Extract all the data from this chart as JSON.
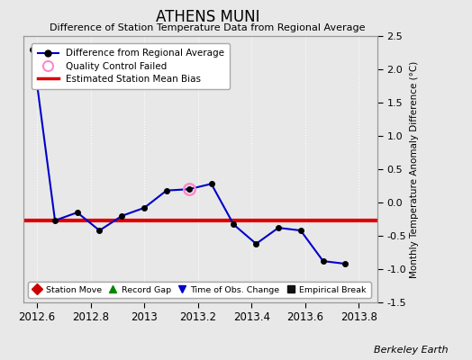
{
  "title": "ATHENS MUNI",
  "subtitle": "Difference of Station Temperature Data from Regional Average",
  "ylabel_right": "Monthly Temperature Anomaly Difference (°C)",
  "xlim": [
    2012.55,
    2013.87
  ],
  "ylim": [
    -1.5,
    2.5
  ],
  "yticks": [
    -1.5,
    -1.0,
    -0.5,
    0.0,
    0.5,
    1.0,
    1.5,
    2.0,
    2.5
  ],
  "xticks": [
    2012.6,
    2012.8,
    2013.0,
    2013.2,
    2013.4,
    2013.6,
    2013.8
  ],
  "xtick_labels": [
    "2012.6",
    "2012.8",
    "2013",
    "2013.2",
    "2013.4",
    "2013.6",
    "2013.8"
  ],
  "line_x": [
    2012.583,
    2012.667,
    2012.75,
    2012.833,
    2012.917,
    2013.0,
    2013.083,
    2013.167,
    2013.25,
    2013.333,
    2013.417,
    2013.5,
    2013.583,
    2013.667,
    2013.75
  ],
  "line_y": [
    2.3,
    -0.27,
    -0.15,
    -0.42,
    -0.2,
    -0.08,
    0.18,
    0.2,
    0.28,
    -0.33,
    -0.62,
    -0.38,
    -0.42,
    -0.88,
    -0.92
  ],
  "qc_failed_x": [
    2013.167
  ],
  "qc_failed_y": [
    0.2
  ],
  "bias_y": -0.27,
  "line_color": "#0000cc",
  "marker_color": "#000000",
  "bias_color": "#dd0000",
  "qc_color": "#ff88cc",
  "background_color": "#e8e8e8",
  "grid_color": "#ffffff",
  "watermark": "Berkeley Earth",
  "legend_items": [
    {
      "label": "Difference from Regional Average"
    },
    {
      "label": "Quality Control Failed"
    },
    {
      "label": "Estimated Station Mean Bias"
    }
  ],
  "bottom_legend": [
    {
      "label": "Station Move",
      "color": "#cc0000",
      "marker": "D"
    },
    {
      "label": "Record Gap",
      "color": "#008800",
      "marker": "^"
    },
    {
      "label": "Time of Obs. Change",
      "color": "#0000cc",
      "marker": "v"
    },
    {
      "label": "Empirical Break",
      "color": "#111111",
      "marker": "s"
    }
  ]
}
